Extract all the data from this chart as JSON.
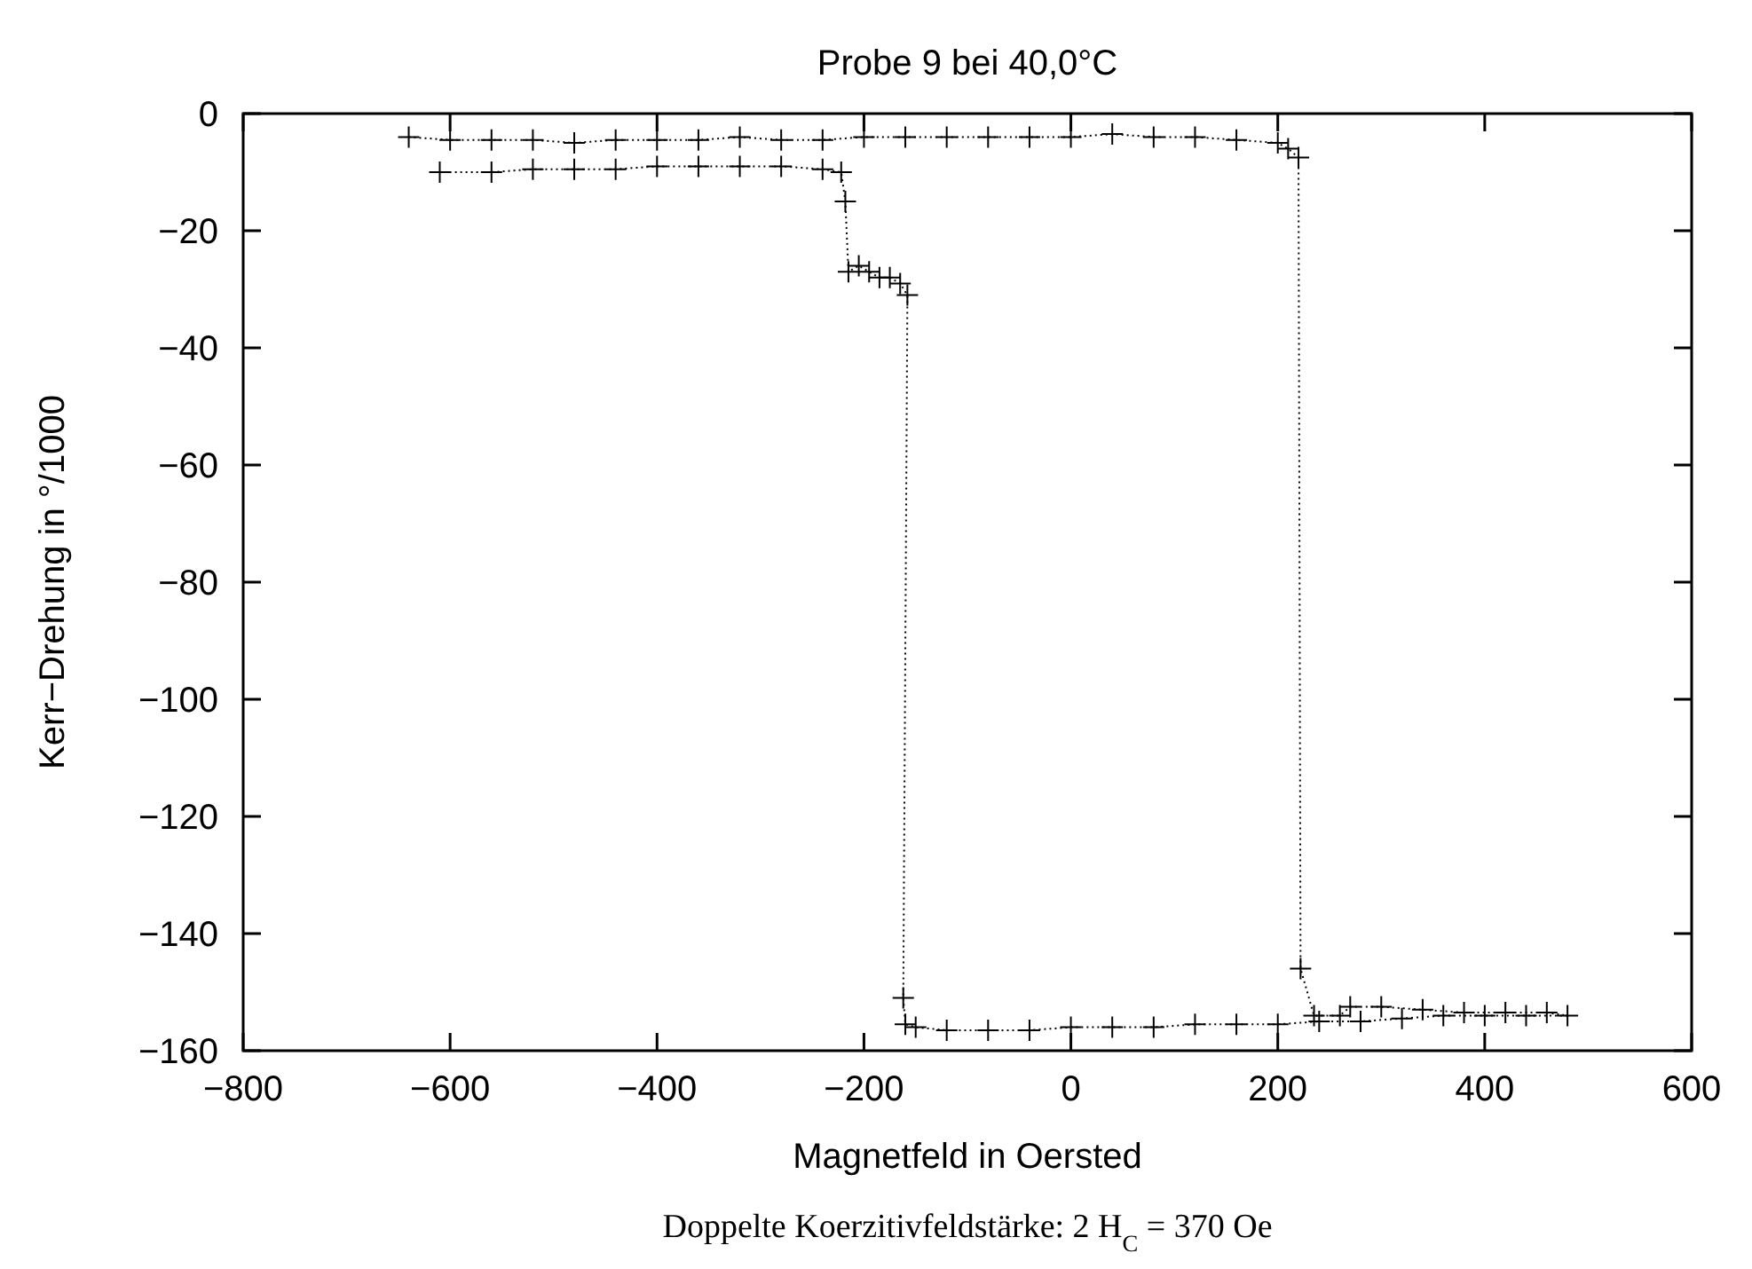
{
  "chart_data": {
    "type": "line",
    "title": "Probe 9 bei 40,0°C",
    "xlabel": "Magnetfeld in Oersted",
    "ylabel": "Kerr−Drehung in °/1000",
    "annotations": [
      "Doppelte Koerzitivfeldstärke: 2 H$_{C}$ = 370 Oe"
    ],
    "xlim": [
      -800,
      600
    ],
    "xticks": [
      -800,
      -600,
      -400,
      -200,
      0,
      200,
      400,
      600
    ],
    "ylim": [
      -160,
      0
    ],
    "yticks": [
      -160,
      -140,
      -120,
      -100,
      -80,
      -60,
      -40,
      -20,
      0
    ],
    "grid": false,
    "marker": "cross",
    "line_style": "dotted",
    "series": [
      {
        "color": "#000000",
        "x": [
          -640,
          -600,
          -560,
          -520,
          -480,
          -440,
          -400,
          -360,
          -320,
          -280,
          -240,
          -200,
          -160,
          -120,
          -80,
          -40,
          0,
          40,
          80,
          120,
          160,
          200,
          210,
          220,
          222,
          235,
          260,
          270,
          300,
          340,
          380,
          420,
          460,
          480,
          440,
          400,
          360,
          320,
          280,
          240,
          200,
          160,
          120,
          80,
          40,
          0,
          -40,
          -80,
          -120,
          -150,
          -160,
          -162,
          -158,
          -165,
          -175,
          -185,
          -195,
          -205,
          -215,
          -218,
          -222,
          -240,
          -280,
          -320,
          -360,
          -400,
          -440,
          -480,
          -520,
          -560,
          -610
        ],
        "values": [
          -4,
          -4.5,
          -4.5,
          -4.5,
          -5,
          -4.5,
          -4.5,
          -4.5,
          -4,
          -4.5,
          -4.5,
          -4,
          -4,
          -4,
          -4,
          -4,
          -4,
          -3.5,
          -4,
          -4,
          -4.5,
          -5,
          -6,
          -7.5,
          -146,
          -154,
          -154,
          -152.5,
          -152.5,
          -153,
          -153.5,
          -153.5,
          -153.5,
          -154,
          -154,
          -154,
          -154,
          -154.5,
          -155,
          -155,
          -155.5,
          -155.5,
          -155.5,
          -156,
          -156,
          -156,
          -156.5,
          -156.5,
          -156.5,
          -156,
          -155.5,
          -151,
          -31,
          -29,
          -28,
          -28,
          -27,
          -26,
          -27,
          -15,
          -10,
          -9.5,
          -9,
          -9,
          -9,
          -9,
          -9.5,
          -9.5,
          -9.5,
          -10,
          -10
        ]
      }
    ]
  }
}
